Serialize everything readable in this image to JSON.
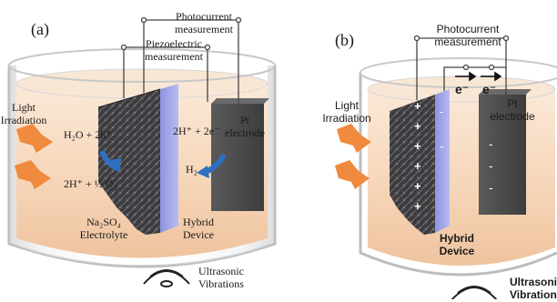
{
  "colors": {
    "beaker_liquid": "#f6d9c0",
    "device_dark": "#3a3a3c",
    "device_blue": "#9fa3e8",
    "pt_electrode": "#4a4a4a",
    "arrow_orange": "#f08a3e",
    "arrow_blue": "#2f6fc2",
    "wire": "#444444"
  },
  "panel_a": {
    "label": "(a)",
    "photocurrent_measurement": [
      "Photocurrent",
      "measurement"
    ],
    "piezoelectric_measurement": [
      "Piezoelectric",
      "measurement"
    ],
    "light_irradiation": [
      "Light",
      "Irradiation"
    ],
    "reaction_left_top": "H₂O + 2h⁺",
    "reaction_left_bottom": "2H⁺ + ½ O₂",
    "reaction_right_top": "2H⁺ + 2e⁻",
    "reaction_right_bottom": "H₂",
    "pt_electrode": [
      "Pt",
      "electrode"
    ],
    "electrolyte": [
      "Na₂SO₄",
      "Electrolyte"
    ],
    "hybrid_device": [
      "Hybrid",
      "Device"
    ],
    "ultrasonic": [
      "Ultrasonic",
      "Vibrations"
    ],
    "ultrasonic_icon": "sound-wave-icon"
  },
  "panel_b": {
    "label": "(b)",
    "photocurrent_measurement": [
      "Photocurrent",
      "measurement"
    ],
    "light_irradiation": [
      "Light",
      "Irradiation"
    ],
    "electron_1": "e⁻",
    "electron_2": "e⁻",
    "plus_sign": "+",
    "minus_sign": "-",
    "pt_electrode": [
      "Pt",
      "electrode"
    ],
    "hybrid_device": [
      "Hybrid",
      "Device"
    ],
    "ultrasonic": [
      "Ultrasonic",
      "Vibrations"
    ],
    "ultrasonic_icon": "sound-wave-icon"
  }
}
